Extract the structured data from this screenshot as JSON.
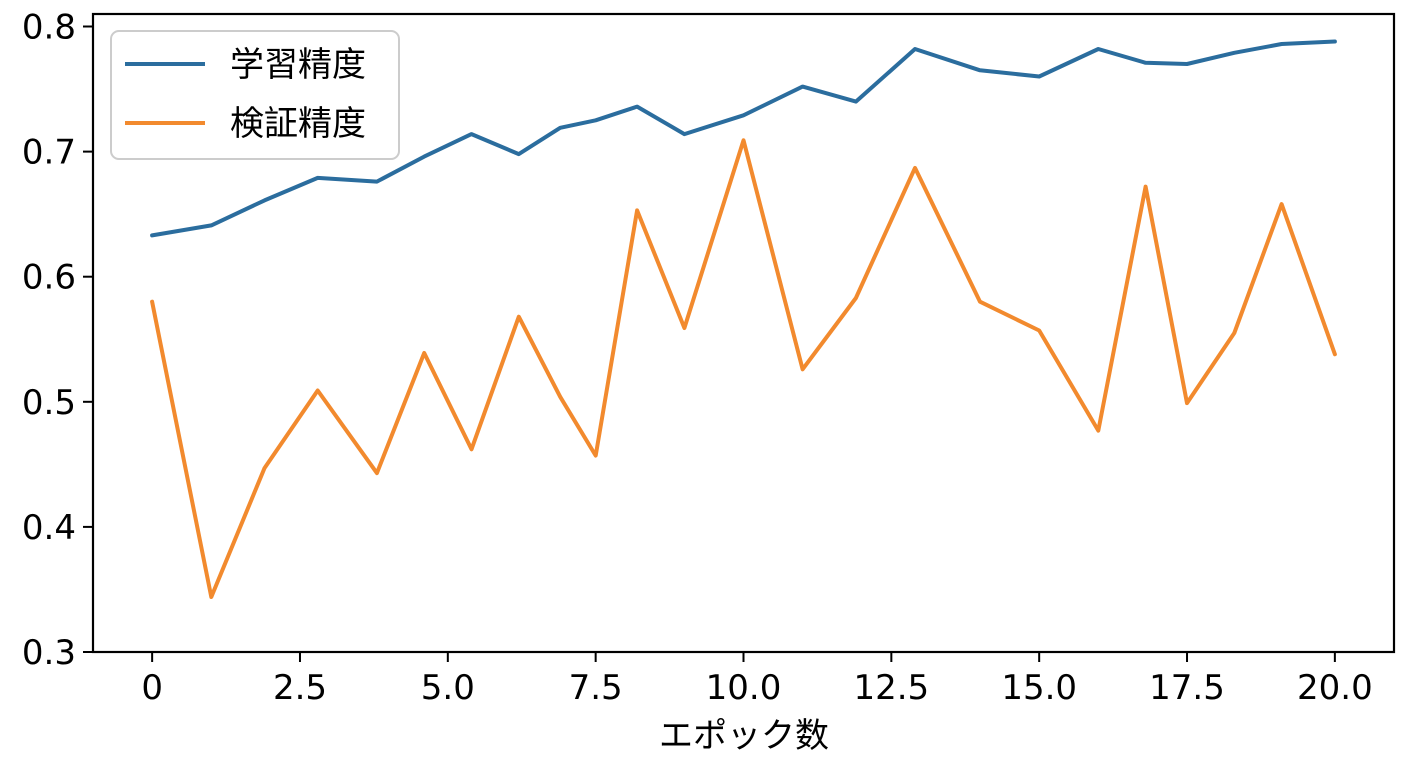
{
  "chart_data": {
    "type": "line",
    "title": "",
    "xlabel": "エポック数",
    "ylabel": "",
    "xlim": [
      -1,
      21
    ],
    "ylim": [
      0.3,
      0.81
    ],
    "xticks": [
      0,
      2.5,
      5.0,
      7.5,
      10.0,
      12.5,
      15.0,
      17.5,
      20.0
    ],
    "xtick_labels": [
      "0",
      "2.5",
      "5.0",
      "7.5",
      "10.0",
      "12.5",
      "15.0",
      "17.5",
      "20.0"
    ],
    "yticks": [
      0.3,
      0.4,
      0.5,
      0.6,
      0.7,
      0.8
    ],
    "ytick_labels": [
      "0.3",
      "0.4",
      "0.5",
      "0.6",
      "0.7",
      "0.8"
    ],
    "grid": false,
    "legend_position": "top-left",
    "series": [
      {
        "name": "学習精度",
        "color": "#2b6d9e",
        "points": [
          [
            0,
            0.633
          ],
          [
            1,
            0.641
          ],
          [
            1.9,
            0.661
          ],
          [
            2.8,
            0.679
          ],
          [
            3.8,
            0.676
          ],
          [
            4.6,
            0.696
          ],
          [
            5.4,
            0.714
          ],
          [
            6.2,
            0.698
          ],
          [
            6.9,
            0.719
          ],
          [
            7.5,
            0.725
          ],
          [
            8.2,
            0.736
          ],
          [
            9.0,
            0.714
          ],
          [
            10.0,
            0.729
          ],
          [
            11.0,
            0.752
          ],
          [
            11.9,
            0.74
          ],
          [
            12.9,
            0.782
          ],
          [
            14.0,
            0.765
          ],
          [
            15.0,
            0.76
          ],
          [
            16.0,
            0.782
          ],
          [
            16.8,
            0.771
          ],
          [
            17.5,
            0.77
          ],
          [
            18.3,
            0.779
          ],
          [
            19.1,
            0.786
          ],
          [
            20.0,
            0.788
          ]
        ]
      },
      {
        "name": "検証精度",
        "color": "#f28a2e",
        "points": [
          [
            0,
            0.58
          ],
          [
            1,
            0.344
          ],
          [
            1.9,
            0.447
          ],
          [
            2.8,
            0.509
          ],
          [
            3.8,
            0.443
          ],
          [
            4.6,
            0.539
          ],
          [
            5.4,
            0.462
          ],
          [
            6.2,
            0.568
          ],
          [
            6.9,
            0.504
          ],
          [
            7.5,
            0.457
          ],
          [
            8.2,
            0.653
          ],
          [
            9.0,
            0.559
          ],
          [
            10.0,
            0.709
          ],
          [
            11.0,
            0.526
          ],
          [
            11.9,
            0.583
          ],
          [
            12.9,
            0.687
          ],
          [
            14.0,
            0.58
          ],
          [
            15.0,
            0.557
          ],
          [
            16.0,
            0.477
          ],
          [
            16.8,
            0.672
          ],
          [
            17.5,
            0.499
          ],
          [
            18.3,
            0.555
          ],
          [
            19.1,
            0.658
          ],
          [
            20.0,
            0.538
          ]
        ]
      }
    ]
  }
}
